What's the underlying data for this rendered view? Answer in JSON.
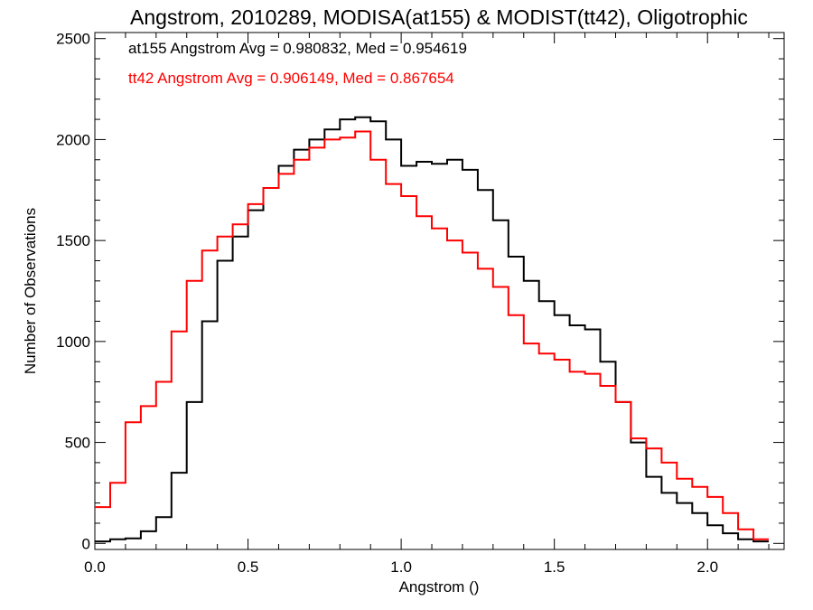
{
  "chart_data": {
    "type": "line",
    "step": true,
    "title": "Angstrom, 2010289, MODISA(at155) & MODIST(tt42), Oligotrophic",
    "xlabel": "Angstrom ()",
    "ylabel": "Number of Observations",
    "xlim": [
      0.0,
      2.25
    ],
    "ylim": [
      -30,
      2530
    ],
    "xticks": [
      0.0,
      0.5,
      1.0,
      1.5,
      2.0
    ],
    "xtick_labels": [
      "0.0",
      "0.5",
      "1.0",
      "1.5",
      "2.0"
    ],
    "yticks": [
      0,
      500,
      1000,
      1500,
      2000,
      2500
    ],
    "ytick_labels": [
      "0",
      "500",
      "1000",
      "1500",
      "2000",
      "2500"
    ],
    "grid": false,
    "legend": "top-left",
    "annotations": [
      {
        "text": "at155 Angstrom Avg = 0.980832, Med = 0.954619",
        "color": "#000000"
      },
      {
        "text": "tt42 Angstrom Avg = 0.906149, Med = 0.867654",
        "color": "#ff0000"
      }
    ],
    "series": [
      {
        "color": "#000000",
        "x": [
          0.0,
          0.05,
          0.1,
          0.15,
          0.2,
          0.25,
          0.3,
          0.35,
          0.4,
          0.45,
          0.5,
          0.55,
          0.6,
          0.65,
          0.7,
          0.75,
          0.8,
          0.85,
          0.9,
          0.95,
          1.0,
          1.05,
          1.1,
          1.15,
          1.2,
          1.25,
          1.3,
          1.35,
          1.4,
          1.45,
          1.5,
          1.55,
          1.6,
          1.65,
          1.7,
          1.75,
          1.8,
          1.85,
          1.9,
          1.95,
          2.0,
          2.05,
          2.1,
          2.15
        ],
        "y": [
          10,
          20,
          25,
          60,
          130,
          350,
          700,
          1100,
          1400,
          1520,
          1650,
          1760,
          1870,
          1950,
          2000,
          2050,
          2100,
          2110,
          2090,
          2000,
          1870,
          1890,
          1880,
          1900,
          1850,
          1750,
          1600,
          1420,
          1300,
          1200,
          1130,
          1080,
          1060,
          900,
          700,
          500,
          330,
          250,
          200,
          150,
          90,
          50,
          20,
          10
        ]
      },
      {
        "color": "#ff0000",
        "x": [
          0.0,
          0.05,
          0.1,
          0.15,
          0.2,
          0.25,
          0.3,
          0.35,
          0.4,
          0.45,
          0.5,
          0.55,
          0.6,
          0.65,
          0.7,
          0.75,
          0.8,
          0.85,
          0.9,
          0.95,
          1.0,
          1.05,
          1.1,
          1.15,
          1.2,
          1.25,
          1.3,
          1.35,
          1.4,
          1.45,
          1.5,
          1.55,
          1.6,
          1.65,
          1.7,
          1.75,
          1.8,
          1.85,
          1.9,
          1.95,
          2.0,
          2.05,
          2.1,
          2.15
        ],
        "y": [
          180,
          300,
          600,
          680,
          800,
          1050,
          1300,
          1450,
          1520,
          1580,
          1680,
          1760,
          1830,
          1900,
          1960,
          2000,
          2010,
          2040,
          1900,
          1780,
          1720,
          1620,
          1560,
          1500,
          1440,
          1360,
          1270,
          1130,
          990,
          940,
          910,
          850,
          840,
          780,
          700,
          520,
          470,
          400,
          320,
          280,
          230,
          150,
          70,
          20
        ]
      }
    ]
  }
}
